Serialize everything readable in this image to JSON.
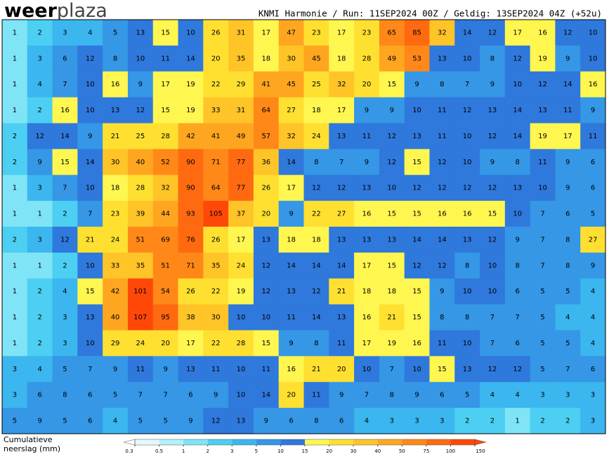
{
  "header": {
    "logo_bold": "weer",
    "logo_light": "plaza",
    "title": "KNMI Harmonie / Run: 11SEP2024 00Z / Geldig: 13SEP2024 04Z (+52u)"
  },
  "map": {
    "rows": [
      [
        1,
        2,
        3,
        4,
        5,
        13,
        15,
        10,
        26,
        31,
        17,
        47,
        23,
        17,
        23,
        65,
        85,
        32,
        14,
        12,
        17,
        16,
        12,
        10
      ],
      [
        1,
        3,
        6,
        12,
        8,
        10,
        11,
        14,
        20,
        35,
        18,
        30,
        45,
        18,
        28,
        49,
        53,
        13,
        10,
        8,
        12,
        19,
        9,
        10
      ],
      [
        1,
        4,
        7,
        10,
        16,
        9,
        17,
        19,
        22,
        29,
        41,
        45,
        25,
        32,
        20,
        15,
        9,
        8,
        7,
        9,
        10,
        12,
        14,
        16
      ],
      [
        1,
        2,
        16,
        10,
        13,
        12,
        15,
        19,
        33,
        31,
        64,
        27,
        18,
        17,
        9,
        9,
        10,
        11,
        12,
        13,
        14,
        13,
        11,
        9
      ],
      [
        2,
        12,
        14,
        9,
        21,
        25,
        28,
        42,
        41,
        49,
        57,
        32,
        24,
        13,
        11,
        12,
        13,
        11,
        10,
        12,
        14,
        19,
        17,
        11
      ],
      [
        2,
        9,
        15,
        14,
        30,
        40,
        52,
        90,
        71,
        77,
        36,
        14,
        8,
        7,
        9,
        12,
        15,
        12,
        10,
        9,
        8,
        11,
        9,
        6
      ],
      [
        1,
        3,
        7,
        10,
        18,
        28,
        32,
        90,
        64,
        77,
        26,
        17,
        12,
        12,
        13,
        10,
        12,
        12,
        12,
        12,
        13,
        10,
        9,
        6
      ],
      [
        1,
        1,
        2,
        7,
        23,
        39,
        44,
        93,
        105,
        37,
        20,
        9,
        22,
        27,
        16,
        15,
        15,
        16,
        16,
        15,
        10,
        7,
        6,
        5
      ],
      [
        2,
        3,
        12,
        21,
        24,
        51,
        69,
        76,
        26,
        17,
        13,
        18,
        18,
        13,
        13,
        13,
        14,
        14,
        13,
        12,
        9,
        7,
        8,
        27
      ],
      [
        1,
        1,
        2,
        10,
        33,
        35,
        51,
        71,
        35,
        24,
        12,
        14,
        14,
        14,
        17,
        15,
        12,
        12,
        8,
        10,
        8,
        7,
        8,
        9
      ],
      [
        1,
        2,
        4,
        15,
        42,
        101,
        54,
        26,
        22,
        19,
        12,
        13,
        12,
        21,
        18,
        18,
        15,
        9,
        10,
        10,
        6,
        5,
        5,
        4
      ],
      [
        1,
        2,
        3,
        13,
        40,
        107,
        95,
        38,
        30,
        10,
        10,
        11,
        14,
        13,
        16,
        21,
        15,
        8,
        8,
        7,
        7,
        5,
        4,
        4
      ],
      [
        1,
        2,
        3,
        10,
        29,
        24,
        20,
        17,
        22,
        28,
        15,
        9,
        8,
        11,
        17,
        19,
        16,
        11,
        10,
        7,
        6,
        5,
        5,
        4
      ],
      [
        3,
        4,
        5,
        7,
        9,
        11,
        9,
        13,
        11,
        10,
        11,
        16,
        21,
        20,
        10,
        7,
        10,
        15,
        13,
        12,
        12,
        5,
        7,
        6
      ],
      [
        3,
        6,
        8,
        6,
        5,
        7,
        7,
        6,
        9,
        10,
        14,
        20,
        11,
        9,
        7,
        8,
        9,
        6,
        5,
        4,
        4,
        3,
        3,
        3
      ],
      [
        5,
        9,
        5,
        6,
        4,
        5,
        5,
        9,
        12,
        13,
        9,
        6,
        8,
        6,
        4,
        3,
        3,
        3,
        2,
        2,
        1,
        2,
        2,
        3
      ]
    ]
  },
  "legend": {
    "title_line1": "Cumulatieve",
    "title_line2": "neerslag (mm)",
    "ticks": [
      0.3,
      0.5,
      1,
      2,
      3,
      5,
      10,
      15,
      20,
      30,
      40,
      50,
      75,
      100,
      150
    ],
    "colors": [
      "#e4f9ff",
      "#b4f0fc",
      "#7ee4f6",
      "#4ccff2",
      "#3bb6ee",
      "#3597e6",
      "#2f78dc",
      "#fff650",
      "#ffe030",
      "#ffc428",
      "#ffa620",
      "#ff8818",
      "#ff6a10",
      "#ff4808"
    ]
  }
}
